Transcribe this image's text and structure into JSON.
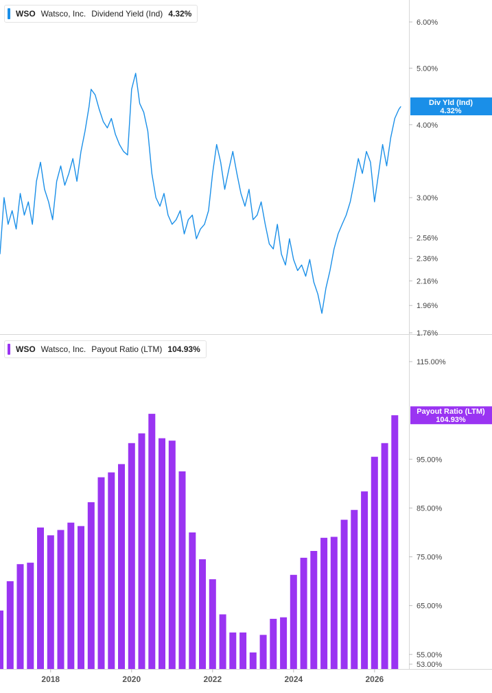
{
  "panels": [
    {
      "ticker": "WSO",
      "company": "Watsco, Inc.",
      "metric": "Dividend Yield (Ind)",
      "value": "4.32%",
      "color": "#1a8fe8",
      "tag_title": "Div Yld (Ind)",
      "tag_value": "4.32%"
    },
    {
      "ticker": "WSO",
      "company": "Watsco, Inc.",
      "metric": "Payout Ratio (LTM)",
      "value": "104.93%",
      "color": "#9a34f2",
      "tag_title": "Payout Ratio (LTM)",
      "tag_value": "104.93%"
    }
  ],
  "chart_data": [
    {
      "type": "line",
      "title": "",
      "xlabel": "",
      "ylabel": "",
      "y_scale": "log",
      "ylim": [
        1.7,
        6.3
      ],
      "xlim": [
        2016.75,
        2026.85
      ],
      "y_ticks": [
        6.0,
        5.0,
        4.0,
        3.0,
        2.56,
        2.36,
        2.16,
        1.96,
        1.76
      ],
      "y_tick_labels": [
        "6.00%",
        "5.00%",
        "4.00%",
        "3.00%",
        "2.56%",
        "2.36%",
        "2.16%",
        "1.96%",
        "1.76%"
      ],
      "x_ticks": [
        2018,
        2020,
        2022,
        2024,
        2026
      ],
      "x_tick_labels": [
        "2018",
        "2020",
        "2022",
        "2024",
        "2026"
      ],
      "grid": false,
      "series": [
        {
          "name": "Dividend Yield (Ind)",
          "x": [
            2016.75,
            2016.85,
            2016.95,
            2017.05,
            2017.15,
            2017.25,
            2017.35,
            2017.45,
            2017.55,
            2017.65,
            2017.75,
            2017.85,
            2017.95,
            2018.05,
            2018.15,
            2018.25,
            2018.35,
            2018.45,
            2018.55,
            2018.65,
            2018.75,
            2018.85,
            2018.95,
            2019.0,
            2019.1,
            2019.2,
            2019.3,
            2019.4,
            2019.5,
            2019.6,
            2019.7,
            2019.8,
            2019.9,
            2020.0,
            2020.1,
            2020.2,
            2020.3,
            2020.4,
            2020.5,
            2020.6,
            2020.7,
            2020.8,
            2020.9,
            2021.0,
            2021.1,
            2021.2,
            2021.3,
            2021.4,
            2021.5,
            2021.6,
            2021.7,
            2021.8,
            2021.9,
            2022.0,
            2022.1,
            2022.2,
            2022.3,
            2022.4,
            2022.5,
            2022.6,
            2022.7,
            2022.8,
            2022.9,
            2023.0,
            2023.1,
            2023.2,
            2023.3,
            2023.4,
            2023.5,
            2023.6,
            2023.7,
            2023.8,
            2023.9,
            2024.0,
            2024.1,
            2024.2,
            2024.3,
            2024.4,
            2024.5,
            2024.6,
            2024.7,
            2024.8,
            2024.9,
            2025.0,
            2025.1,
            2025.2,
            2025.3,
            2025.4,
            2025.5,
            2025.6,
            2025.7,
            2025.8,
            2025.9,
            2026.0,
            2026.1,
            2026.2,
            2026.3,
            2026.4,
            2026.5,
            2026.6,
            2026.65
          ],
          "values": [
            2.4,
            3.0,
            2.7,
            2.85,
            2.65,
            3.05,
            2.8,
            2.95,
            2.7,
            3.2,
            3.45,
            3.1,
            2.95,
            2.75,
            3.2,
            3.4,
            3.15,
            3.3,
            3.5,
            3.2,
            3.6,
            3.9,
            4.3,
            4.6,
            4.5,
            4.25,
            4.05,
            3.95,
            4.1,
            3.85,
            3.7,
            3.6,
            3.55,
            4.6,
            4.9,
            4.35,
            4.2,
            3.9,
            3.3,
            3.0,
            2.9,
            3.05,
            2.8,
            2.7,
            2.75,
            2.85,
            2.6,
            2.75,
            2.8,
            2.55,
            2.65,
            2.7,
            2.85,
            3.3,
            3.7,
            3.45,
            3.1,
            3.35,
            3.6,
            3.3,
            3.05,
            2.9,
            3.1,
            2.75,
            2.8,
            2.95,
            2.7,
            2.5,
            2.45,
            2.7,
            2.4,
            2.3,
            2.55,
            2.35,
            2.25,
            2.3,
            2.2,
            2.35,
            2.15,
            2.05,
            1.9,
            2.1,
            2.25,
            2.45,
            2.6,
            2.7,
            2.8,
            2.95,
            3.2,
            3.5,
            3.3,
            3.6,
            3.45,
            2.95,
            3.3,
            3.7,
            3.4,
            3.8,
            4.1,
            4.25,
            4.3
          ]
        }
      ]
    },
    {
      "type": "bar",
      "title": "",
      "xlabel": "",
      "ylabel": "",
      "ylim": [
        52.5,
        121
      ],
      "xlim": [
        2016.75,
        2026.85
      ],
      "y_ticks": [
        115,
        95,
        85,
        75,
        65,
        55,
        53
      ],
      "y_tick_labels": [
        "115.00%",
        "95.00%",
        "85.00%",
        "75.00%",
        "65.00%",
        "55.00%",
        "53.00%"
      ],
      "x_ticks": [
        2018,
        2020,
        2022,
        2024,
        2026
      ],
      "x_tick_labels": [
        "2018",
        "2020",
        "2022",
        "2024",
        "2026"
      ],
      "grid": false,
      "series": [
        {
          "name": "Payout Ratio (LTM)",
          "x": [
            2016.75,
            2017.0,
            2017.25,
            2017.5,
            2017.75,
            2018.0,
            2018.25,
            2018.5,
            2018.75,
            2019.0,
            2019.25,
            2019.5,
            2019.75,
            2020.0,
            2020.25,
            2020.5,
            2020.75,
            2021.0,
            2021.25,
            2021.5,
            2021.75,
            2022.0,
            2022.25,
            2022.5,
            2022.75,
            2023.0,
            2023.25,
            2023.5,
            2023.75,
            2024.0,
            2024.25,
            2024.5,
            2024.75,
            2025.0,
            2025.25,
            2025.5,
            2025.75,
            2026.0,
            2026.25,
            2026.5
          ],
          "values": [
            64.0,
            70.0,
            73.5,
            73.8,
            81.0,
            79.4,
            80.5,
            82.0,
            81.3,
            86.2,
            91.3,
            92.3,
            94.0,
            98.3,
            100.3,
            104.3,
            99.3,
            98.8,
            92.5,
            80.0,
            74.5,
            70.4,
            63.2,
            59.5,
            59.5,
            55.4,
            59.0,
            62.3,
            62.6,
            71.3,
            74.8,
            76.2,
            78.9,
            79.1,
            82.6,
            84.6,
            88.4,
            95.5,
            98.3,
            104.0
          ]
        }
      ]
    }
  ]
}
